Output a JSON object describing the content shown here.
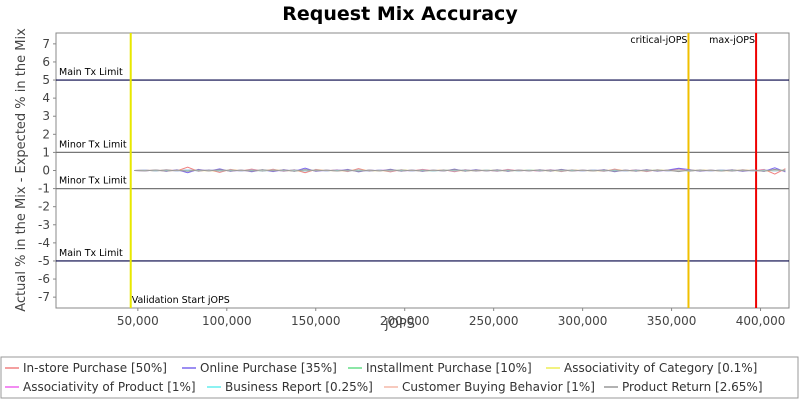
{
  "chart_data": {
    "type": "line",
    "title": "Request Mix Accuracy",
    "xlabel": "jOPS",
    "ylabel": "Actual % in the Mix - Expected % in the Mix",
    "xlim": [
      4000,
      416000
    ],
    "ylim": [
      -7.6,
      7.6
    ],
    "yticks": [
      -7,
      -6,
      -5,
      -4,
      -3,
      -2,
      -1,
      0,
      1,
      2,
      3,
      4,
      5,
      6,
      7
    ],
    "xticks": [
      50000,
      100000,
      150000,
      200000,
      250000,
      300000,
      350000,
      400000
    ],
    "xtick_labels": [
      "50,000",
      "100,000",
      "150,000",
      "200,000",
      "250,000",
      "300,000",
      "350,000",
      "400,000"
    ],
    "grid": false,
    "legend_position": "bottom",
    "x": [
      48000,
      54000,
      60000,
      66000,
      72000,
      78000,
      84000,
      90000,
      96000,
      102000,
      108000,
      114000,
      120000,
      126000,
      132000,
      138000,
      144000,
      150000,
      156000,
      162000,
      168000,
      174000,
      180000,
      186000,
      192000,
      198000,
      204000,
      210000,
      216000,
      222000,
      228000,
      234000,
      240000,
      246000,
      252000,
      258000,
      264000,
      270000,
      276000,
      282000,
      288000,
      294000,
      300000,
      306000,
      312000,
      318000,
      324000,
      330000,
      336000,
      342000,
      348000,
      354000,
      360000,
      366000,
      372000,
      378000,
      384000,
      390000,
      396000,
      402000,
      408000,
      414000
    ],
    "series": [
      {
        "name": "In-store Purchase [50%]",
        "color": "#f08080",
        "values": [
          0,
          0.02,
          -0.03,
          0.05,
          -0.02,
          0.18,
          -0.05,
          0.04,
          -0.1,
          0.06,
          -0.03,
          0.08,
          -0.04,
          0.07,
          -0.05,
          0.05,
          -0.12,
          0.06,
          -0.02,
          0.04,
          -0.06,
          0.1,
          -0.04,
          0.03,
          -0.08,
          0.05,
          -0.03,
          0.06,
          -0.02,
          0.04,
          -0.07,
          0.05,
          -0.04,
          0.03,
          -0.05,
          0.06,
          -0.03,
          0.02,
          -0.04,
          0.05,
          -0.06,
          0.04,
          -0.02,
          0.03,
          -0.05,
          0.08,
          -0.03,
          0.04,
          -0.06,
          0.05,
          -0.03,
          0.1,
          -0.05,
          0.04,
          -0.02,
          0.03,
          -0.04,
          0.05,
          -0.03,
          0.06,
          -0.2,
          0.1
        ]
      },
      {
        "name": "Online Purchase [35%]",
        "color": "#7b68ee",
        "values": [
          0,
          -0.02,
          0.03,
          -0.05,
          0.04,
          -0.12,
          0.06,
          -0.03,
          0.09,
          -0.05,
          0.03,
          -0.07,
          0.04,
          -0.06,
          0.05,
          -0.04,
          0.13,
          -0.05,
          0.02,
          -0.03,
          0.06,
          -0.08,
          0.03,
          -0.02,
          0.07,
          -0.04,
          0.03,
          -0.05,
          0.02,
          -0.03,
          0.08,
          -0.04,
          0.05,
          -0.03,
          0.04,
          -0.05,
          0.03,
          -0.02,
          0.04,
          -0.04,
          0.06,
          -0.03,
          0.02,
          -0.03,
          0.05,
          -0.07,
          0.03,
          -0.04,
          0.05,
          -0.04,
          0.03,
          0.12,
          0.05,
          -0.04,
          0.02,
          -0.03,
          0.04,
          -0.05,
          0.03,
          -0.05,
          0.15,
          -0.08
        ]
      },
      {
        "name": "Installment Purchase [10%]",
        "color": "#66dd88",
        "values": [
          0,
          0.01,
          -0.01,
          0.02,
          -0.02,
          0.03,
          -0.01,
          0.02,
          -0.02,
          0.01,
          -0.01,
          0.02,
          -0.02,
          0.01,
          -0.01,
          0.02,
          -0.02,
          0.01,
          -0.01,
          0.02,
          -0.01,
          0.01,
          -0.02,
          0.01,
          -0.01,
          0.02,
          -0.01,
          0.01,
          -0.02,
          0.01,
          -0.01,
          0.02,
          -0.01,
          0.01,
          -0.02,
          0.01,
          -0.01,
          0.02,
          -0.01,
          0.01,
          -0.02,
          0.01,
          -0.01,
          0.02,
          -0.01,
          0.01,
          -0.02,
          0.01,
          -0.01,
          0.02,
          -0.01,
          0.01,
          -0.02,
          0.01,
          -0.01,
          0.02,
          -0.01,
          0.01,
          -0.02,
          0.01,
          -0.01,
          0.02
        ]
      },
      {
        "name": "Associativity of Category [0.1%]",
        "color": "#eeee55",
        "values": [
          0,
          0.01,
          0,
          -0.01,
          0,
          0.01,
          0,
          -0.01,
          0,
          0.01,
          0,
          -0.01,
          0,
          0.01,
          0,
          -0.01,
          0,
          0.01,
          0,
          -0.01,
          0,
          0.01,
          0,
          -0.01,
          0,
          0.01,
          0,
          -0.01,
          0,
          0.01,
          0,
          -0.01,
          0,
          0.01,
          0,
          -0.01,
          0,
          0.01,
          0,
          -0.01,
          0,
          0.01,
          0,
          -0.01,
          0,
          0.01,
          0,
          -0.01,
          0,
          0.01,
          0,
          -0.01,
          0,
          0.01,
          0,
          -0.01,
          0,
          0.01,
          0,
          -0.01,
          0,
          0.01
        ]
      },
      {
        "name": "Associativity of Product [1%]",
        "color": "#ee66ee",
        "values": [
          0,
          0.02,
          -0.01,
          0.01,
          -0.02,
          0.03,
          -0.01,
          0.02,
          -0.01,
          0.01,
          -0.02,
          0.02,
          -0.01,
          0.01,
          -0.02,
          0.02,
          -0.01,
          0.01,
          -0.02,
          0.03,
          -0.01,
          0.01,
          -0.02,
          0.02,
          -0.01,
          0.01,
          -0.02,
          0.02,
          -0.01,
          0.01,
          -0.02,
          0.02,
          -0.01,
          0.01,
          -0.02,
          0.02,
          -0.01,
          0.01,
          -0.02,
          0.02,
          -0.01,
          0.01,
          -0.02,
          0.02,
          -0.01,
          0.01,
          -0.02,
          0.02,
          -0.01,
          0.01,
          -0.02,
          0.02,
          -0.01,
          0.01,
          -0.02,
          0.02,
          -0.01,
          0.01,
          -0.02,
          0.02,
          -0.01,
          0.01
        ]
      },
      {
        "name": "Business Report [0.25%]",
        "color": "#66eeee",
        "values": [
          0,
          0.01,
          -0.01,
          0.01,
          -0.01,
          0.02,
          -0.01,
          0.01,
          -0.01,
          0.01,
          -0.01,
          0.01,
          -0.01,
          0.01,
          -0.01,
          0.01,
          -0.01,
          0.01,
          -0.01,
          0.01,
          -0.01,
          0.01,
          -0.01,
          0.01,
          -0.01,
          0.01,
          -0.01,
          0.01,
          -0.01,
          0.01,
          -0.01,
          0.01,
          -0.01,
          0.01,
          -0.01,
          0.01,
          -0.01,
          0.01,
          -0.01,
          0.01,
          -0.01,
          0.01,
          -0.01,
          0.01,
          -0.01,
          0.01,
          -0.01,
          0.01,
          -0.01,
          0.01,
          -0.01,
          0.01,
          -0.01,
          0.01,
          -0.01,
          0.01,
          -0.01,
          0.01,
          -0.01,
          0.01,
          -0.01,
          0.01
        ]
      },
      {
        "name": "Customer Buying Behavior [1%]",
        "color": "#f4b8a8",
        "values": [
          0,
          -0.01,
          0.02,
          -0.02,
          0.01,
          -0.03,
          0.02,
          -0.01,
          0.03,
          -0.02,
          0.01,
          -0.02,
          0.02,
          -0.01,
          0.02,
          -0.02,
          0.03,
          -0.01,
          0.01,
          -0.02,
          0.02,
          -0.03,
          0.01,
          -0.01,
          0.02,
          -0.02,
          0.01,
          -0.02,
          0.01,
          -0.01,
          0.03,
          -0.02,
          0.01,
          -0.01,
          0.02,
          -0.02,
          0.01,
          -0.01,
          0.02,
          -0.01,
          0.02,
          -0.02,
          0.01,
          -0.01,
          0.02,
          -0.03,
          0.01,
          -0.02,
          0.02,
          -0.01,
          0.01,
          -0.02,
          0.02,
          -0.01,
          0.01,
          -0.02,
          0.02,
          -0.01,
          0.01,
          -0.02,
          0.03,
          -0.02
        ]
      },
      {
        "name": "Product Return [2.65%]",
        "color": "#999999",
        "values": [
          0,
          -0.02,
          0.03,
          -0.03,
          0.02,
          -0.04,
          0.03,
          -0.02,
          0.04,
          -0.03,
          0.02,
          -0.03,
          0.04,
          -0.02,
          0.03,
          -0.04,
          0.05,
          -0.02,
          0.02,
          -0.03,
          0.03,
          -0.05,
          0.02,
          -0.02,
          0.04,
          -0.03,
          0.02,
          -0.03,
          0.02,
          -0.02,
          0.05,
          -0.03,
          0.02,
          -0.02,
          0.03,
          -0.03,
          0.02,
          -0.02,
          0.03,
          -0.02,
          0.04,
          -0.03,
          0.02,
          -0.02,
          0.03,
          -0.04,
          0.02,
          -0.03,
          0.03,
          -0.02,
          0.02,
          -0.06,
          0.03,
          -0.02,
          0.02,
          -0.03,
          0.03,
          -0.02,
          0.02,
          -0.04,
          0.06,
          -0.03
        ]
      }
    ],
    "reference_lines": [
      {
        "axis": "y",
        "value": 5,
        "label": "Main Tx Limit",
        "color": "#000044"
      },
      {
        "axis": "y",
        "value": 1,
        "label": "Minor Tx Limit",
        "color": "#777777"
      },
      {
        "axis": "y",
        "value": -1,
        "label": "Minor Tx Limit",
        "color": "#777777"
      },
      {
        "axis": "y",
        "value": -5,
        "label": "Main Tx Limit",
        "color": "#000044"
      },
      {
        "axis": "x",
        "value": 46000,
        "label": "Validation Start jOPS",
        "color": "#e8e800"
      },
      {
        "axis": "x",
        "value": 359500,
        "label": "critical-jOPS",
        "color": "#f0c000"
      },
      {
        "axis": "x",
        "value": 397500,
        "label": "max-jOPS",
        "color": "#ee0000"
      }
    ]
  }
}
